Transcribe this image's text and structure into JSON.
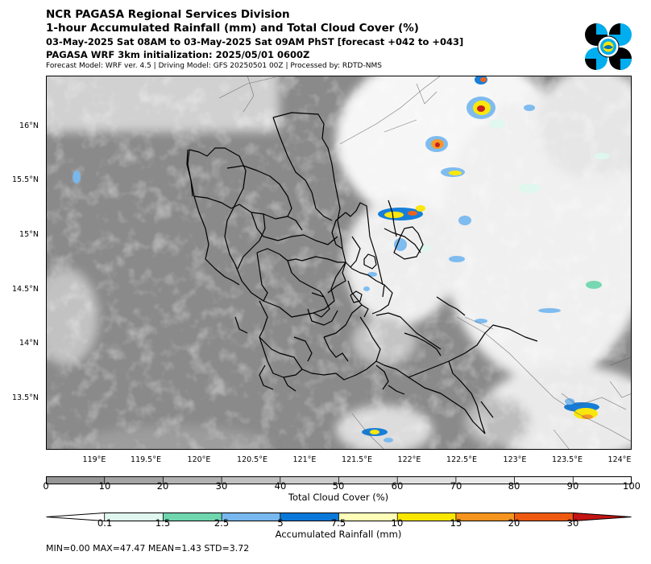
{
  "header": {
    "title1": "NCR PAGASA Regional Services Division",
    "title2": "1-hour Accumulated Rainfall (mm) and Total Cloud Cover (%)",
    "subtitle1": "03-May-2025 Sat 08AM to 03-May-2025 Sat 09AM PhST [forecast +042 to +043]",
    "subtitle2": "PAGASA WRF 3km initialization: 2025/05/01 0600Z",
    "model_info": "Forecast Model: WRF ver. 4.5 | Driving Model: GFS 20250501 00Z | Processed by: RDTD-NMS"
  },
  "logo": {
    "icon": "pagasa-seal-icon",
    "colors": [
      "#000000",
      "#00aeef",
      "#f7e400",
      "#ffffff"
    ]
  },
  "map": {
    "lat_labels": [
      "16°N",
      "15.5°N",
      "15°N",
      "14.5°N",
      "14°N",
      "13.5°N"
    ],
    "lon_labels": [
      "119°E",
      "119.5°E",
      "120°E",
      "120.5°E",
      "121°E",
      "121.5°E",
      "122°E",
      "122.5°E",
      "123°E",
      "123.5°E",
      "124°E"
    ],
    "cloud_background": "#8a8a8a",
    "cloud_clear": "#ffffff"
  },
  "cloud_colorbar": {
    "ticks": [
      "0",
      "10",
      "20",
      "30",
      "40",
      "50",
      "60",
      "70",
      "80",
      "90",
      "100"
    ],
    "colors": [
      "#969696",
      "#a4a4a4",
      "#b2b2b2",
      "#c0c0c0",
      "#cccccc",
      "#d6d6d6",
      "#e0e0e0",
      "#eaeaea",
      "#f3f3f3",
      "#fafafa"
    ],
    "label": "Total Cloud Cover (%)"
  },
  "rain_colorbar": {
    "ticks": [
      "0.1",
      "1.5",
      "2.5",
      "5",
      "7.5",
      "10",
      "15",
      "20",
      "30"
    ],
    "colors": [
      "#ffffff",
      "#dff7ee",
      "#6fd6ae",
      "#78b8ee",
      "#0a78d8",
      "#fefeb8",
      "#fae600",
      "#f5941e",
      "#ee5a10",
      "#c41414"
    ],
    "label": "Accumulated Rainfall (mm)"
  },
  "stats": "MIN=0.00   MAX=47.47   MEAN=1.43   STD=3.72"
}
